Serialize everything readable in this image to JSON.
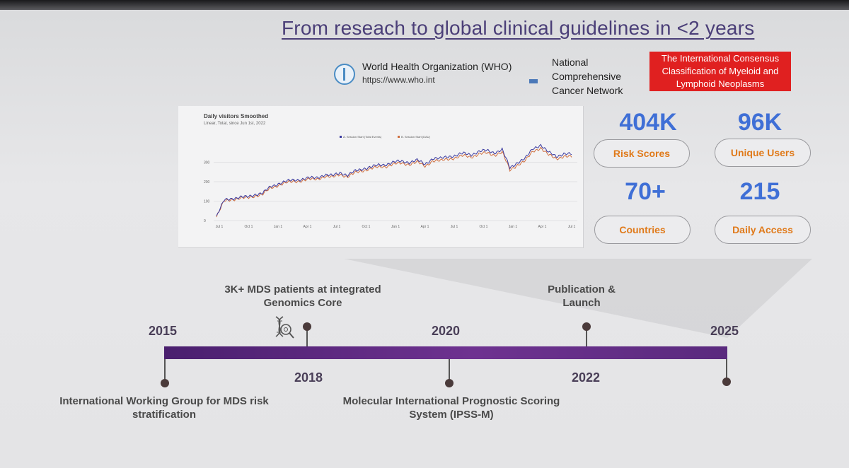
{
  "title": "From reseach to global clinical guidelines in <2 years",
  "logos": {
    "who": {
      "name": "World Health Organization (WHO)",
      "url": "https://www.who.int",
      "icon": "who-emblem-icon"
    },
    "nccn": {
      "name": "National Comprehensive Cancer Network",
      "icon": "nccn-logo-icon"
    },
    "icc": {
      "text": "The International Consensus Classification of Myeloid and Lymphoid Neoplasms"
    }
  },
  "chart_data": {
    "type": "line",
    "title": "Daily visitors Smoothed",
    "subtitle": "Linear, Total, since Jun 1st, 2022",
    "series": [
      {
        "name": "A. Session Start (Total Events)",
        "color": "#3a3aa0",
        "values": [
          20,
          105,
          115,
          118,
          122,
          135,
          140,
          175,
          190,
          200,
          210,
          212,
          218,
          222,
          235,
          230,
          248,
          232,
          255,
          268,
          275,
          285,
          290,
          300,
          305,
          300,
          310,
          290,
          320,
          318,
          330,
          335,
          345,
          340,
          355,
          360,
          350,
          365,
          270,
          300,
          320,
          370,
          390,
          350,
          330,
          345,
          340
        ]
      },
      {
        "name": "B. Session Start (DAU)",
        "color": "#d07040",
        "values": [
          18,
          100,
          110,
          113,
          117,
          128,
          134,
          168,
          183,
          193,
          202,
          205,
          211,
          215,
          226,
          222,
          240,
          224,
          246,
          259,
          266,
          275,
          280,
          290,
          295,
          290,
          300,
          280,
          308,
          306,
          318,
          323,
          333,
          328,
          342,
          347,
          338,
          352,
          258,
          288,
          307,
          356,
          375,
          337,
          318,
          332,
          327
        ]
      }
    ],
    "x_tick_labels": [
      "Jul 1",
      "Oct 1",
      "Jan 1",
      "Apr 1",
      "Jul 1",
      "Oct 1",
      "Jan 1",
      "Apr 1",
      "Jul 1",
      "Oct 1",
      "Jan 1",
      "Apr 1",
      "Jul 1"
    ],
    "y_tick_labels": [
      "0",
      "100",
      "200",
      "300"
    ],
    "ylim": [
      0,
      400
    ],
    "legend": "top",
    "grid": true
  },
  "stats": [
    {
      "value": "404K",
      "label": "Risk Scores"
    },
    {
      "value": "96K",
      "label": "Unique Users"
    },
    {
      "value": "70+",
      "label": "Countries"
    },
    {
      "value": "215",
      "label": "Daily Access"
    }
  ],
  "timeline": {
    "years": [
      "2015",
      "2018",
      "2020",
      "2022",
      "2025"
    ],
    "events": [
      {
        "text": "International Working Group for MDS risk stratification"
      },
      {
        "text": "3K+ MDS patients at integrated Genomics Core",
        "icon": "dna-search-icon"
      },
      {
        "text": "Molecular International Prognostic Scoring System (IPSS-M)"
      },
      {
        "text": "Publication & Launch"
      }
    ]
  },
  "colors": {
    "title": "#4b3f78",
    "stat_value": "#3f6fd6",
    "pill_text": "#e07a1a",
    "timeline_bar": "#5a2a7e",
    "icc_red": "#e02020"
  }
}
